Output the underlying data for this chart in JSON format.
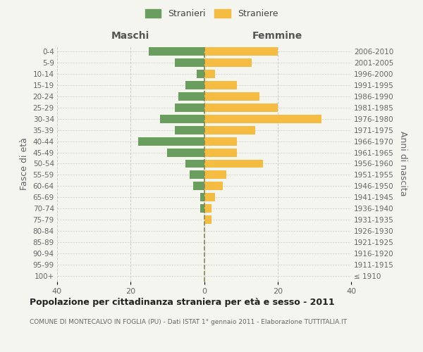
{
  "age_groups": [
    "100+",
    "95-99",
    "90-94",
    "85-89",
    "80-84",
    "75-79",
    "70-74",
    "65-69",
    "60-64",
    "55-59",
    "50-54",
    "45-49",
    "40-44",
    "35-39",
    "30-34",
    "25-29",
    "20-24",
    "15-19",
    "10-14",
    "5-9",
    "0-4"
  ],
  "birth_years": [
    "≤ 1910",
    "1911-1915",
    "1916-1920",
    "1921-1925",
    "1926-1930",
    "1931-1935",
    "1936-1940",
    "1941-1945",
    "1946-1950",
    "1951-1955",
    "1956-1960",
    "1961-1965",
    "1966-1970",
    "1971-1975",
    "1976-1980",
    "1981-1985",
    "1986-1990",
    "1991-1995",
    "1996-2000",
    "2001-2005",
    "2006-2010"
  ],
  "males": [
    0,
    0,
    0,
    0,
    0,
    0,
    1,
    1,
    3,
    4,
    5,
    10,
    18,
    8,
    12,
    8,
    7,
    5,
    2,
    8,
    15
  ],
  "females": [
    0,
    0,
    0,
    0,
    0,
    2,
    2,
    3,
    5,
    6,
    16,
    9,
    9,
    14,
    32,
    20,
    15,
    9,
    3,
    13,
    20
  ],
  "male_color": "#6a9e5e",
  "female_color": "#f5bc42",
  "grid_color": "#cccccc",
  "center_line_color": "#888855",
  "title": "Popolazione per cittadinanza straniera per età e sesso - 2011",
  "subtitle": "COMUNE DI MONTECALVO IN FOGLIA (PU) - Dati ISTAT 1° gennaio 2011 - Elaborazione TUTTITALIA.IT",
  "ylabel_left": "Fasce di età",
  "ylabel_right": "Anni di nascita",
  "header_left": "Maschi",
  "header_right": "Femmine",
  "legend_male": "Stranieri",
  "legend_female": "Straniere",
  "xlim": 40,
  "background_color": "#f5f5f0"
}
